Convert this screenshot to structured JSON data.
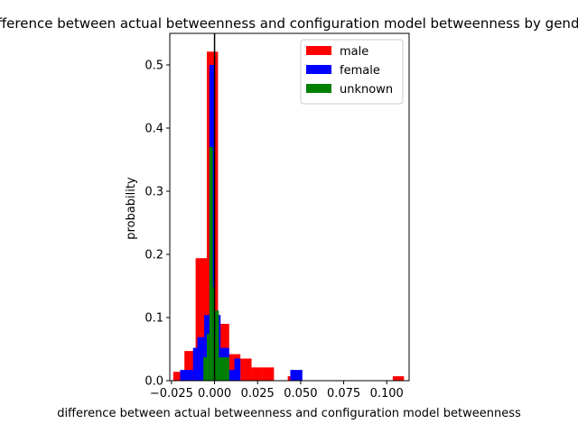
{
  "chart_data": {
    "type": "bar",
    "title": "difference between actual betweenness and configuration model betweenness by gender",
    "xlabel": "difference between actual betweenness and configuration model betweenness",
    "ylabel": "probability",
    "xlim": [
      -0.026,
      0.113
    ],
    "ylim": [
      0,
      0.55
    ],
    "x_ticks": [
      -0.025,
      0.0,
      0.025,
      0.05,
      0.075,
      0.1
    ],
    "x_tick_labels": [
      "−0.025",
      "0.000",
      "0.025",
      "0.050",
      "0.075",
      "0.100"
    ],
    "y_ticks": [
      0.0,
      0.1,
      0.2,
      0.3,
      0.4,
      0.5
    ],
    "y_tick_labels": [
      "0.0",
      "0.1",
      "0.2",
      "0.3",
      "0.4",
      "0.5"
    ],
    "grid": false,
    "legend_position": "top-right",
    "vline_x": 0.0,
    "series": [
      {
        "name": "male",
        "color": "#ff0000",
        "bins": [
          {
            "x0": -0.024,
            "x1": -0.0175,
            "y": 0.014
          },
          {
            "x0": -0.0175,
            "x1": -0.011,
            "y": 0.047
          },
          {
            "x0": -0.011,
            "x1": -0.0045,
            "y": 0.194
          },
          {
            "x0": -0.0045,
            "x1": 0.002,
            "y": 0.521
          },
          {
            "x0": 0.002,
            "x1": 0.0085,
            "y": 0.09
          },
          {
            "x0": 0.0085,
            "x1": 0.015,
            "y": 0.042
          },
          {
            "x0": 0.015,
            "x1": 0.0215,
            "y": 0.035
          },
          {
            "x0": 0.0215,
            "x1": 0.028,
            "y": 0.021
          },
          {
            "x0": 0.028,
            "x1": 0.0345,
            "y": 0.021
          },
          {
            "x0": 0.0425,
            "x1": 0.047,
            "y": 0.007
          },
          {
            "x0": 0.1035,
            "x1": 0.11,
            "y": 0.007
          }
        ]
      },
      {
        "name": "female",
        "color": "#0000ff",
        "bins": [
          {
            "x0": -0.02,
            "x1": -0.0125,
            "y": 0.017
          },
          {
            "x0": -0.0125,
            "x1": -0.01,
            "y": 0.052
          },
          {
            "x0": -0.01,
            "x1": -0.006,
            "y": 0.069
          },
          {
            "x0": -0.006,
            "x1": -0.003,
            "y": 0.104
          },
          {
            "x0": -0.003,
            "x1": 0.0,
            "y": 0.5
          },
          {
            "x0": 0.0,
            "x1": 0.0035,
            "y": 0.104
          },
          {
            "x0": 0.0035,
            "x1": 0.0085,
            "y": 0.052
          },
          {
            "x0": 0.0085,
            "x1": 0.0115,
            "y": 0.017
          },
          {
            "x0": 0.0115,
            "x1": 0.015,
            "y": 0.035
          },
          {
            "x0": 0.044,
            "x1": 0.051,
            "y": 0.017
          }
        ]
      },
      {
        "name": "unknown",
        "color": "#008000",
        "bins": [
          {
            "x0": -0.0065,
            "x1": -0.0045,
            "y": 0.037
          },
          {
            "x0": -0.0045,
            "x1": -0.003,
            "y": 0.074
          },
          {
            "x0": -0.003,
            "x1": -0.001,
            "y": 0.37
          },
          {
            "x0": -0.001,
            "x1": 0.0,
            "y": 0.148
          },
          {
            "x0": 0.0,
            "x1": 0.0025,
            "y": 0.111
          },
          {
            "x0": 0.0025,
            "x1": 0.006,
            "y": 0.037
          },
          {
            "x0": 0.006,
            "x1": 0.0085,
            "y": 0.037
          }
        ]
      }
    ]
  }
}
